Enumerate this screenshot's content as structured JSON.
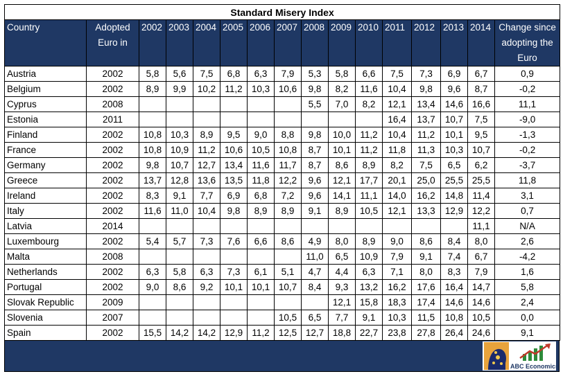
{
  "title": "Standard Misery Index",
  "headers": {
    "country": "Country",
    "adopted": "Adopted Euro in",
    "years": [
      "2002",
      "2003",
      "2004",
      "2005",
      "2006",
      "2007",
      "2008",
      "2009",
      "2010",
      "2011",
      "2012",
      "2013",
      "2014"
    ],
    "change": "Change since adopting the Euro"
  },
  "rows": [
    {
      "country": "Austria",
      "adopted": "2002",
      "values": [
        "5,8",
        "5,6",
        "7,5",
        "6,8",
        "6,3",
        "7,9",
        "5,3",
        "5,8",
        "6,6",
        "7,5",
        "7,3",
        "6,9",
        "6,7"
      ],
      "change": "0,9"
    },
    {
      "country": "Belgium",
      "adopted": "2002",
      "values": [
        "8,9",
        "9,9",
        "10,2",
        "11,2",
        "10,3",
        "10,6",
        "9,8",
        "8,2",
        "11,6",
        "10,4",
        "9,8",
        "9,6",
        "8,7"
      ],
      "change": "-0,2"
    },
    {
      "country": "Cyprus",
      "adopted": "2008",
      "values": [
        "",
        "",
        "",
        "",
        "",
        "",
        "5,5",
        "7,0",
        "8,2",
        "12,1",
        "13,4",
        "14,6",
        "16,6"
      ],
      "change": "11,1"
    },
    {
      "country": "Estonia",
      "adopted": "2011",
      "values": [
        "",
        "",
        "",
        "",
        "",
        "",
        "",
        "",
        "",
        "16,4",
        "13,7",
        "10,7",
        "7,5"
      ],
      "change": "-9,0"
    },
    {
      "country": "Finland",
      "adopted": "2002",
      "values": [
        "10,8",
        "10,3",
        "8,9",
        "9,5",
        "9,0",
        "8,8",
        "9,8",
        "10,0",
        "11,2",
        "10,4",
        "11,2",
        "10,1",
        "9,5"
      ],
      "change": "-1,3"
    },
    {
      "country": "France",
      "adopted": "2002",
      "values": [
        "10,8",
        "10,9",
        "11,2",
        "10,6",
        "10,5",
        "10,8",
        "8,7",
        "10,1",
        "11,2",
        "11,8",
        "11,3",
        "10,3",
        "10,7"
      ],
      "change": "-0,2"
    },
    {
      "country": "Germany",
      "adopted": "2002",
      "values": [
        "9,8",
        "10,7",
        "12,7",
        "13,4",
        "11,6",
        "11,7",
        "8,7",
        "8,6",
        "8,9",
        "8,2",
        "7,5",
        "6,5",
        "6,2"
      ],
      "change": "-3,7"
    },
    {
      "country": "Greece",
      "adopted": "2002",
      "values": [
        "13,7",
        "12,8",
        "13,6",
        "13,5",
        "11,8",
        "12,2",
        "9,6",
        "12,1",
        "17,7",
        "20,1",
        "25,0",
        "25,5",
        "25,5"
      ],
      "change": "11,8"
    },
    {
      "country": "Ireland",
      "adopted": "2002",
      "values": [
        "8,3",
        "9,1",
        "7,7",
        "6,9",
        "6,8",
        "7,2",
        "9,6",
        "14,1",
        "11,1",
        "14,0",
        "16,2",
        "14,8",
        "11,4"
      ],
      "change": "3,1"
    },
    {
      "country": "Italy",
      "adopted": "2002",
      "values": [
        "11,6",
        "11,0",
        "10,4",
        "9,8",
        "8,9",
        "8,9",
        "9,1",
        "8,9",
        "10,5",
        "12,1",
        "13,3",
        "12,9",
        "12,2"
      ],
      "change": "0,7"
    },
    {
      "country": "Latvia",
      "adopted": "2014",
      "values": [
        "",
        "",
        "",
        "",
        "",
        "",
        "",
        "",
        "",
        "",
        "",
        "",
        "11,1"
      ],
      "change": "N/A"
    },
    {
      "country": "Luxembourg",
      "adopted": "2002",
      "values": [
        "5,4",
        "5,7",
        "7,3",
        "7,6",
        "6,6",
        "8,6",
        "4,9",
        "8,0",
        "8,9",
        "9,0",
        "8,6",
        "8,4",
        "8,0"
      ],
      "change": "2,6"
    },
    {
      "country": "Malta",
      "adopted": "2008",
      "values": [
        "",
        "",
        "",
        "",
        "",
        "",
        "11,0",
        "6,5",
        "10,9",
        "7,9",
        "9,1",
        "7,4",
        "6,7"
      ],
      "change": "-4,2"
    },
    {
      "country": "Netherlands",
      "adopted": "2002",
      "values": [
        "6,3",
        "5,8",
        "6,3",
        "7,3",
        "6,1",
        "5,1",
        "4,7",
        "4,4",
        "6,3",
        "7,1",
        "8,0",
        "8,3",
        "7,9"
      ],
      "change": "1,6"
    },
    {
      "country": "Portugal",
      "adopted": "2002",
      "values": [
        "9,0",
        "8,6",
        "9,2",
        "10,1",
        "10,1",
        "10,7",
        "8,4",
        "9,3",
        "13,2",
        "16,2",
        "17,6",
        "16,4",
        "14,7"
      ],
      "change": "5,8"
    },
    {
      "country": "Slovak Republic",
      "adopted": "2009",
      "values": [
        "",
        "",
        "",
        "",
        "",
        "",
        "",
        "12,1",
        "15,8",
        "18,3",
        "17,4",
        "14,6",
        "14,6"
      ],
      "change": "2,4"
    },
    {
      "country": "Slovenia",
      "adopted": "2007",
      "values": [
        "",
        "",
        "",
        "",
        "",
        "10,5",
        "6,5",
        "7,7",
        "9,1",
        "10,3",
        "11,5",
        "10,8",
        "10,5"
      ],
      "change": "0,0"
    },
    {
      "country": "Spain",
      "adopted": "2002",
      "values": [
        "15,5",
        "14,2",
        "14,2",
        "12,9",
        "11,2",
        "12,5",
        "12,7",
        "18,8",
        "22,7",
        "23,8",
        "27,8",
        "26,4",
        "24,6"
      ],
      "change": "9,1"
    }
  ],
  "logo": {
    "text": "ABC Economics",
    "icon": "abc-economics-logo-icon"
  },
  "colors": {
    "header_bg": "#1f3864",
    "header_text": "#ffffff",
    "logo_chart": "#2e8b3a",
    "logo_arrow": "#c0392b"
  }
}
